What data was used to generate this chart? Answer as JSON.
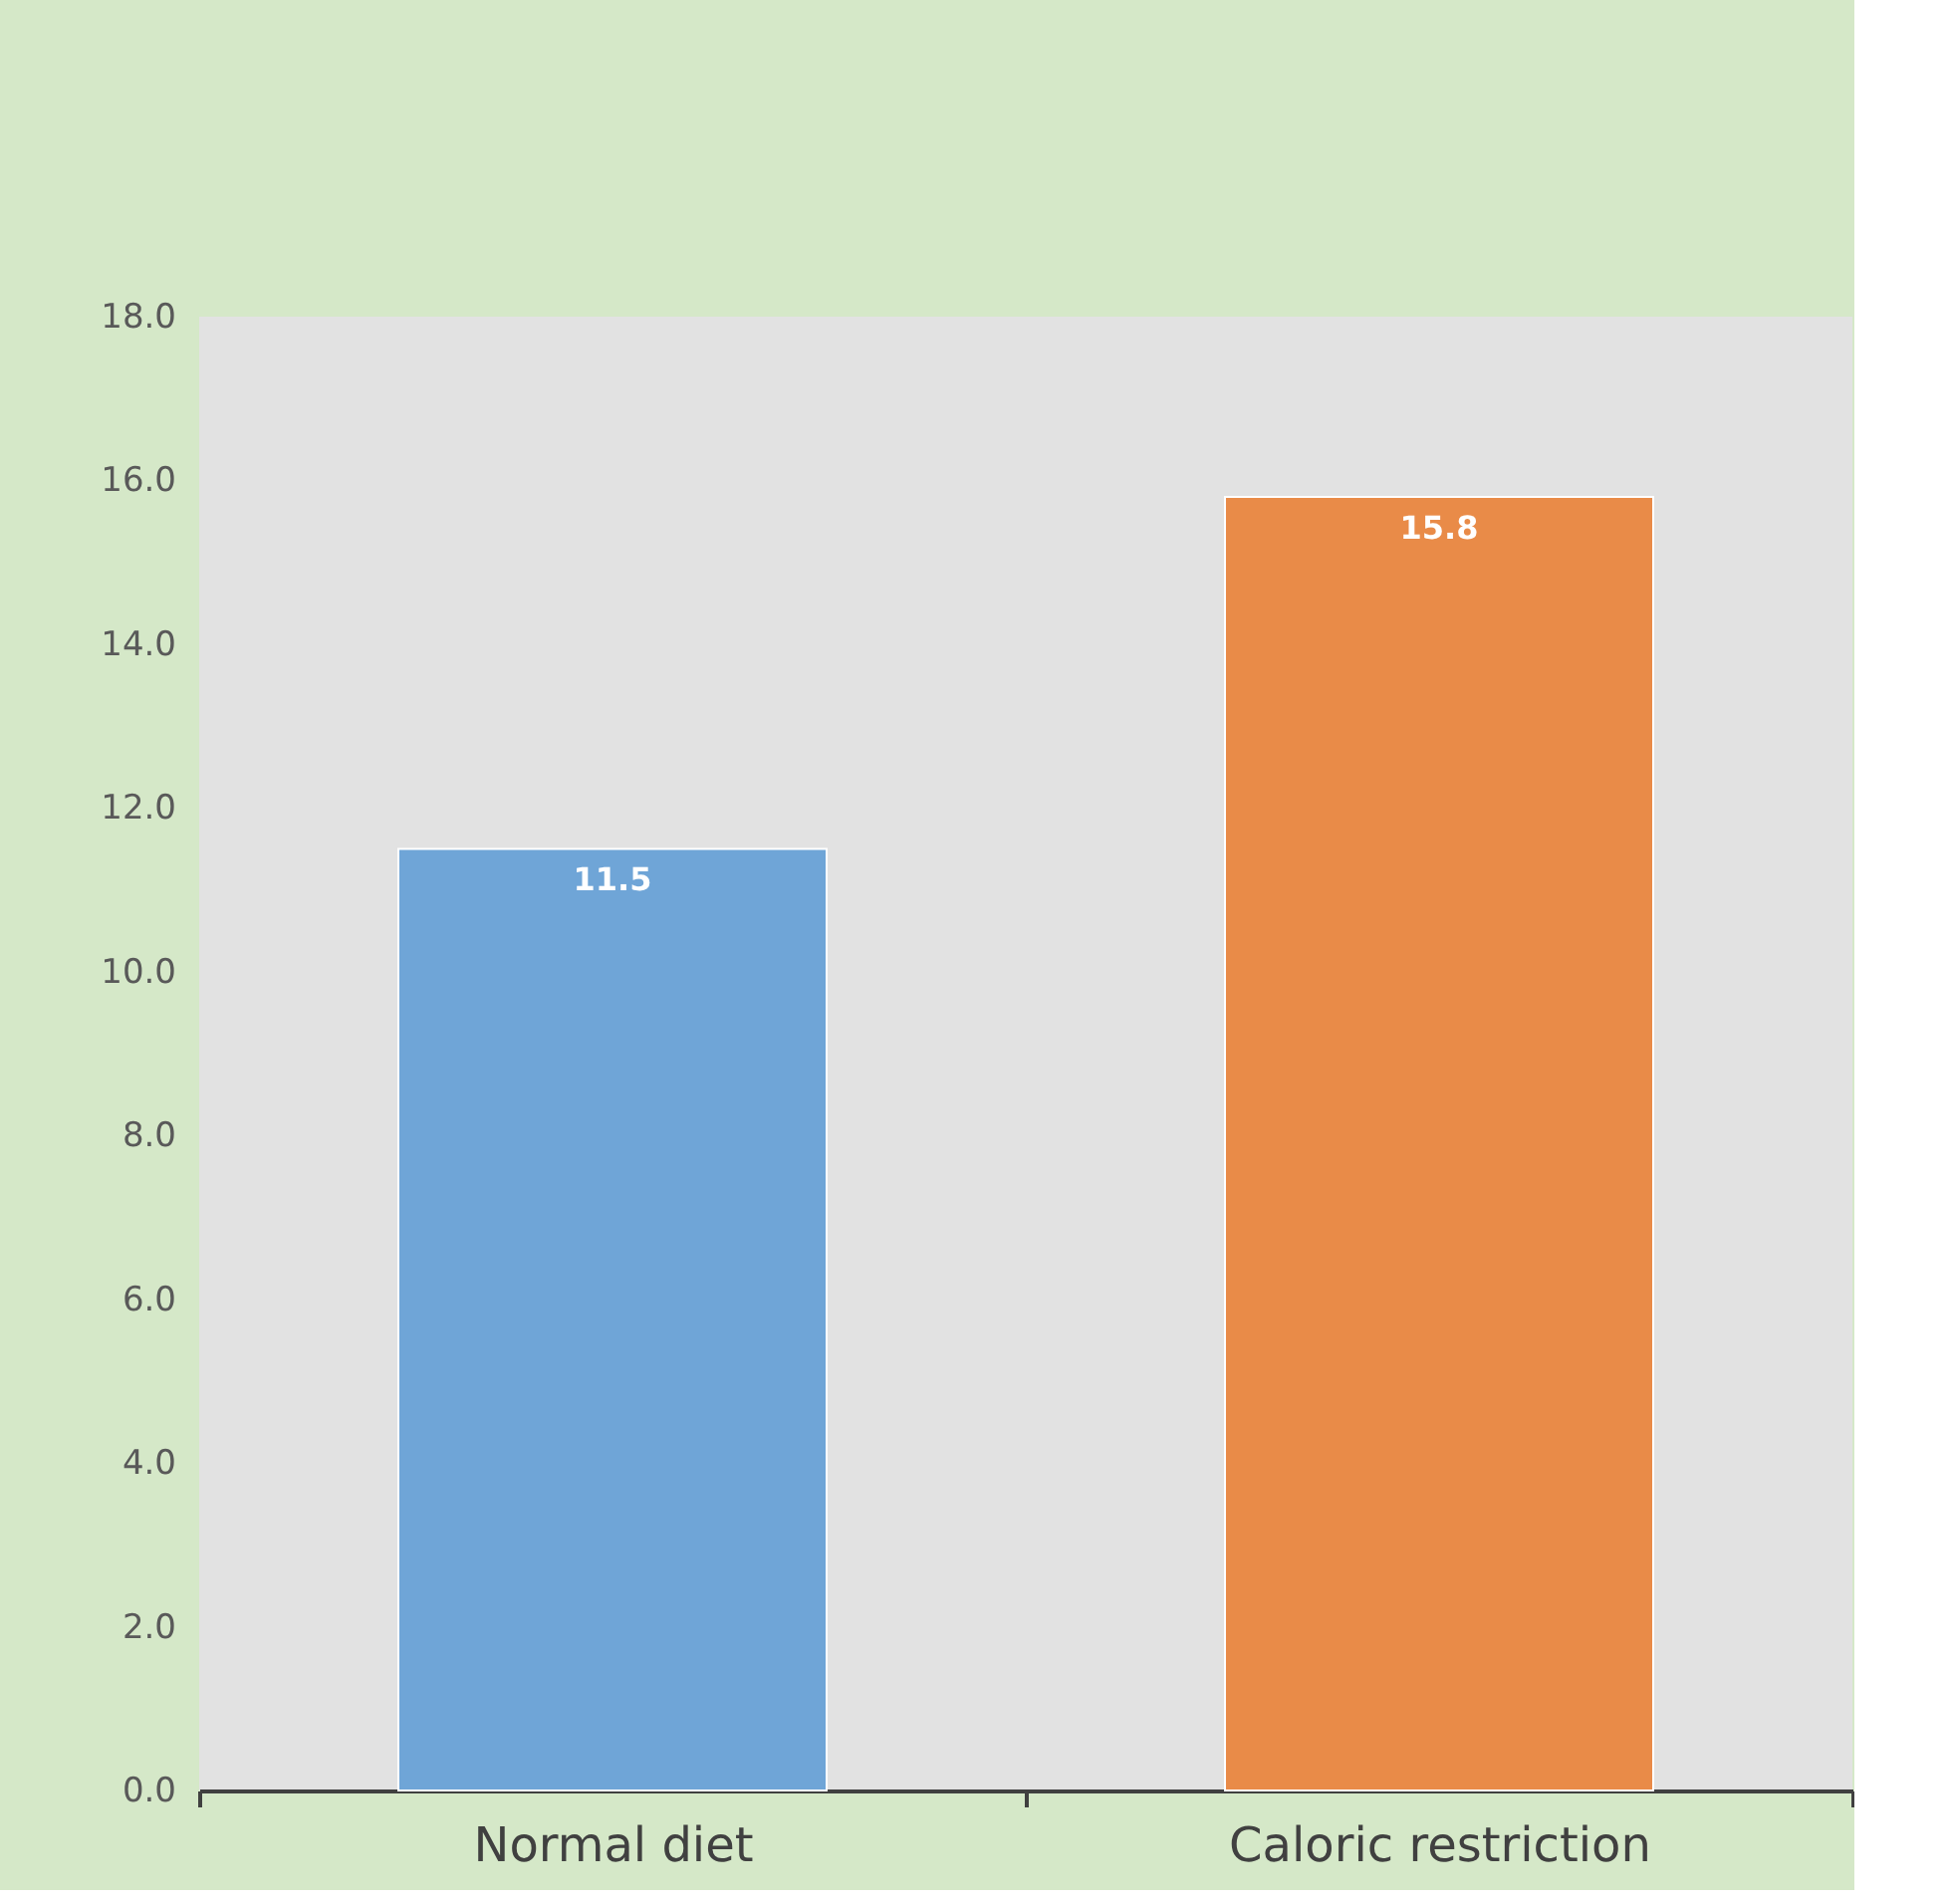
{
  "chart_data": {
    "type": "bar",
    "categories": [
      "Normal diet",
      "Caloric restriction"
    ],
    "values": [
      11.5,
      15.8
    ],
    "colors": [
      "#6fa5d7",
      "#e98b48"
    ],
    "ylim": [
      0,
      18
    ],
    "yticks": [
      {
        "value": 0,
        "label": "0.0"
      },
      {
        "value": 2,
        "label": "2.0"
      },
      {
        "value": 4,
        "label": "4.0"
      },
      {
        "value": 6,
        "label": "6.0"
      },
      {
        "value": 8,
        "label": "8.0"
      },
      {
        "value": 10,
        "label": "10.0"
      },
      {
        "value": 12,
        "label": "12.0"
      },
      {
        "value": 14,
        "label": "14.0"
      },
      {
        "value": 16,
        "label": "16.0"
      },
      {
        "value": 18,
        "label": "18.0"
      }
    ],
    "data_labels": true,
    "grid": false,
    "legend": false
  }
}
